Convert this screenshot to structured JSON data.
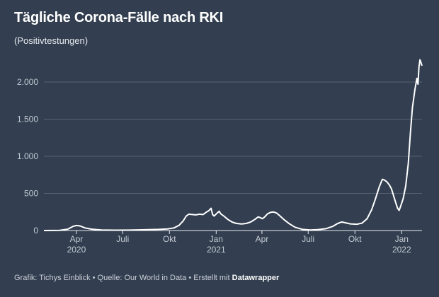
{
  "title": "Tägliche Corona-Fälle nach RKI",
  "subtitle": "(Positivtestungen)",
  "footer": {
    "prefix": "Grafik: Tichys Einblick • Quelle: Our World in Data • Erstellt mit ",
    "brand": "Datawrapper"
  },
  "colors": {
    "background": "#333f50",
    "line": "#ffffff",
    "grid": "#56606f"
  },
  "chart_data": {
    "type": "line",
    "title": "Tägliche Corona-Fälle nach RKI",
    "subtitle": "(Positivtestungen)",
    "grid": true,
    "ylim": [
      0,
      2300
    ],
    "y_ticks": [
      {
        "value": 0,
        "label": "0"
      },
      {
        "value": 500,
        "label": "500"
      },
      {
        "value": 1000,
        "label": "1.000"
      },
      {
        "value": 1500,
        "label": "1.500"
      },
      {
        "value": 2000,
        "label": "2.000"
      }
    ],
    "x_ticks": [
      {
        "date": "2020-04-01",
        "label": "Apr",
        "year": "2020"
      },
      {
        "date": "2020-07-01",
        "label": "Juli",
        "year": ""
      },
      {
        "date": "2020-10-01",
        "label": "Okt",
        "year": ""
      },
      {
        "date": "2021-01-01",
        "label": "Jan",
        "year": "2021"
      },
      {
        "date": "2021-04-01",
        "label": "Apr",
        "year": ""
      },
      {
        "date": "2021-07-01",
        "label": "Juli",
        "year": ""
      },
      {
        "date": "2021-10-01",
        "label": "Okt",
        "year": ""
      },
      {
        "date": "2022-01-01",
        "label": "Jan",
        "year": "2022"
      }
    ],
    "x_range": [
      "2020-01-28",
      "2022-02-10"
    ],
    "series": [
      {
        "points": [
          [
            "2020-01-28",
            0
          ],
          [
            "2020-02-28",
            2
          ],
          [
            "2020-03-15",
            18
          ],
          [
            "2020-03-25",
            55
          ],
          [
            "2020-04-01",
            68
          ],
          [
            "2020-04-08",
            62
          ],
          [
            "2020-04-18",
            35
          ],
          [
            "2020-05-01",
            18
          ],
          [
            "2020-05-20",
            8
          ],
          [
            "2020-06-15",
            5
          ],
          [
            "2020-07-15",
            6
          ],
          [
            "2020-08-15",
            10
          ],
          [
            "2020-09-10",
            15
          ],
          [
            "2020-09-28",
            22
          ],
          [
            "2020-10-10",
            35
          ],
          [
            "2020-10-20",
            70
          ],
          [
            "2020-10-28",
            130
          ],
          [
            "2020-11-03",
            195
          ],
          [
            "2020-11-08",
            220
          ],
          [
            "2020-11-15",
            215
          ],
          [
            "2020-11-22",
            210
          ],
          [
            "2020-11-29",
            220
          ],
          [
            "2020-12-06",
            215
          ],
          [
            "2020-12-12",
            245
          ],
          [
            "2020-12-18",
            270
          ],
          [
            "2020-12-22",
            300
          ],
          [
            "2020-12-25",
            215
          ],
          [
            "2020-12-28",
            195
          ],
          [
            "2021-01-02",
            230
          ],
          [
            "2021-01-07",
            260
          ],
          [
            "2021-01-10",
            225
          ],
          [
            "2021-01-16",
            195
          ],
          [
            "2021-01-24",
            150
          ],
          [
            "2021-02-01",
            115
          ],
          [
            "2021-02-10",
            95
          ],
          [
            "2021-02-20",
            88
          ],
          [
            "2021-03-01",
            95
          ],
          [
            "2021-03-10",
            115
          ],
          [
            "2021-03-18",
            150
          ],
          [
            "2021-03-25",
            185
          ],
          [
            "2021-04-02",
            160
          ],
          [
            "2021-04-06",
            180
          ],
          [
            "2021-04-12",
            225
          ],
          [
            "2021-04-18",
            245
          ],
          [
            "2021-04-24",
            250
          ],
          [
            "2021-04-30",
            235
          ],
          [
            "2021-05-06",
            200
          ],
          [
            "2021-05-14",
            150
          ],
          [
            "2021-05-24",
            95
          ],
          [
            "2021-06-05",
            45
          ],
          [
            "2021-06-20",
            15
          ],
          [
            "2021-07-05",
            8
          ],
          [
            "2021-07-20",
            12
          ],
          [
            "2021-08-05",
            25
          ],
          [
            "2021-08-18",
            55
          ],
          [
            "2021-08-28",
            95
          ],
          [
            "2021-09-05",
            115
          ],
          [
            "2021-09-12",
            105
          ],
          [
            "2021-09-22",
            90
          ],
          [
            "2021-10-05",
            85
          ],
          [
            "2021-10-15",
            100
          ],
          [
            "2021-10-25",
            160
          ],
          [
            "2021-11-03",
            280
          ],
          [
            "2021-11-10",
            420
          ],
          [
            "2021-11-18",
            590
          ],
          [
            "2021-11-24",
            690
          ],
          [
            "2021-11-28",
            680
          ],
          [
            "2021-12-03",
            655
          ],
          [
            "2021-12-08",
            610
          ],
          [
            "2021-12-12",
            560
          ],
          [
            "2021-12-16",
            470
          ],
          [
            "2021-12-20",
            380
          ],
          [
            "2021-12-24",
            300
          ],
          [
            "2021-12-27",
            270
          ],
          [
            "2021-12-30",
            330
          ],
          [
            "2022-01-04",
            430
          ],
          [
            "2022-01-09",
            600
          ],
          [
            "2022-01-14",
            900
          ],
          [
            "2022-01-18",
            1300
          ],
          [
            "2022-01-22",
            1650
          ],
          [
            "2022-01-27",
            1900
          ],
          [
            "2022-01-31",
            2050
          ],
          [
            "2022-02-02",
            1970
          ],
          [
            "2022-02-04",
            2200
          ],
          [
            "2022-02-06",
            2300
          ],
          [
            "2022-02-08",
            2260
          ],
          [
            "2022-02-10",
            2220
          ]
        ]
      }
    ]
  }
}
